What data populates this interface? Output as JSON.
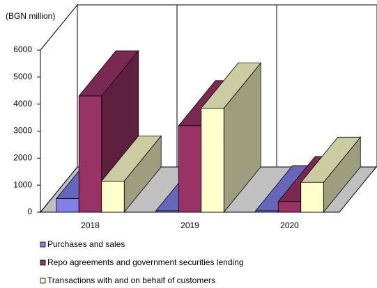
{
  "chart_data": {
    "type": "bar3d",
    "y_axis_label": "(BGN million)",
    "categories": [
      "2018",
      "2019",
      "2020"
    ],
    "series": [
      {
        "name": "Purchases and sales",
        "color": "#8080e8",
        "values": [
          500,
          50,
          50
        ]
      },
      {
        "name": "Repo agreements and government securities lending",
        "color": "#993366",
        "values": [
          4300,
          3200,
          390
        ]
      },
      {
        "name": "Transactions with and on behalf of customers",
        "color": "#ffffcc",
        "values": [
          1150,
          3850,
          1100
        ]
      }
    ],
    "ylim": [
      0,
      6000
    ],
    "yticks": [
      0,
      1000,
      2000,
      3000,
      4000,
      5000,
      6000
    ]
  }
}
